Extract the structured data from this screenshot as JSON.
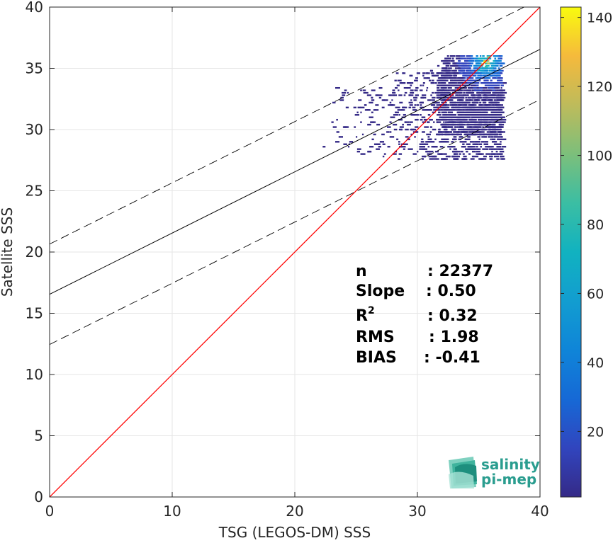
{
  "chart_data": {
    "type": "scatter",
    "subtype": "density-scatter",
    "xlabel": "TSG (LEGOS-DM) SSS",
    "ylabel": "Satellite SSS",
    "xlim": [
      0,
      40
    ],
    "ylim": [
      0,
      40
    ],
    "xticks": [
      "0",
      "10",
      "20",
      "30",
      "40"
    ],
    "yticks": [
      "0",
      "5",
      "10",
      "15",
      "20",
      "25",
      "30",
      "35",
      "40"
    ],
    "grid": true,
    "colorbar": {
      "lim": [
        1,
        143
      ],
      "ticks": [
        "20",
        "40",
        "60",
        "80",
        "100",
        "120",
        "140"
      ],
      "colormap": "parula"
    },
    "lines": [
      {
        "kind": "identity",
        "color": "#ff0000",
        "x": [
          0,
          40
        ],
        "y": [
          0,
          40
        ]
      },
      {
        "kind": "regression",
        "color": "#000000",
        "style": "solid",
        "x": [
          0,
          40
        ],
        "y": [
          16.55,
          36.55
        ]
      },
      {
        "kind": "upper-bound",
        "color": "#000000",
        "style": "dashed",
        "x": [
          0,
          40
        ],
        "y": [
          20.65,
          40.65
        ]
      },
      {
        "kind": "lower-bound",
        "color": "#000000",
        "style": "dashed",
        "x": [
          0,
          40
        ],
        "y": [
          12.45,
          32.45
        ]
      }
    ],
    "density_cloud": {
      "x_range": [
        21.7,
        36.9
      ],
      "y_range": [
        27.5,
        36.3
      ],
      "peak": {
        "x": 35.5,
        "y": 35.5,
        "count": 143
      }
    },
    "stats": [
      {
        "label": "n",
        "value": ": 22377"
      },
      {
        "label": "Slope",
        "value": ": 0.50"
      },
      {
        "label": "R",
        "sup": "2",
        "value": ": 0.32"
      },
      {
        "label": "RMS",
        "value": ": 1.98"
      },
      {
        "label": "BIAS",
        "value": ": -0.41"
      }
    ]
  },
  "logo": {
    "line1": "salinity",
    "line2": "pi-mep"
  },
  "colors": {
    "identity": "#ff0000",
    "fit": "#000000",
    "logo_teal": "#2a9d8f",
    "background": "#ffffff"
  }
}
